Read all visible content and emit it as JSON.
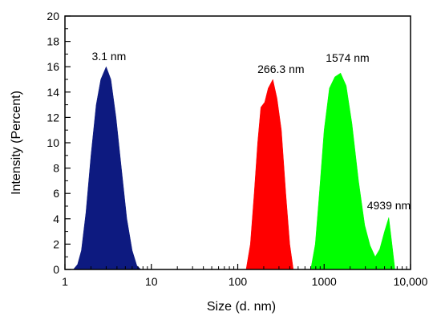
{
  "chart_data": {
    "type": "area",
    "xscale": "log",
    "xlim": [
      1,
      10000
    ],
    "ylim": [
      0,
      20
    ],
    "xlabel": "Size (d. nm)",
    "ylabel": "Intensity (Percent)",
    "xticks": [
      1,
      10,
      100,
      1000,
      10000
    ],
    "xtick_labels": [
      "1",
      "10",
      "100",
      "1000",
      "10,000"
    ],
    "yticks": [
      0,
      2,
      4,
      6,
      8,
      10,
      12,
      14,
      16,
      18,
      20
    ],
    "ytick_labels": [
      "0",
      "2",
      "4",
      "6",
      "8",
      "10",
      "12",
      "14",
      "16",
      "18",
      "20"
    ],
    "grid": false,
    "series": [
      {
        "color": "#0d1a80",
        "points": [
          [
            1.25,
            0
          ],
          [
            1.4,
            0.4
          ],
          [
            1.55,
            1.5
          ],
          [
            1.75,
            4.5
          ],
          [
            2.0,
            9
          ],
          [
            2.3,
            13
          ],
          [
            2.6,
            15
          ],
          [
            3.0,
            16
          ],
          [
            3.4,
            15
          ],
          [
            3.9,
            12
          ],
          [
            4.5,
            8
          ],
          [
            5.2,
            4
          ],
          [
            6.0,
            1.5
          ],
          [
            6.8,
            0.3
          ],
          [
            7.6,
            0
          ]
        ]
      },
      {
        "color": "#ff0000",
        "points": [
          [
            125,
            0
          ],
          [
            140,
            2
          ],
          [
            155,
            6
          ],
          [
            170,
            10
          ],
          [
            185,
            12.8
          ],
          [
            205,
            13.2
          ],
          [
            225,
            14.3
          ],
          [
            255,
            15.0
          ],
          [
            285,
            13.5
          ],
          [
            320,
            11
          ],
          [
            360,
            6
          ],
          [
            400,
            2
          ],
          [
            440,
            0
          ]
        ]
      },
      {
        "color": "#00ff00",
        "points": [
          [
            700,
            0
          ],
          [
            790,
            2
          ],
          [
            880,
            6
          ],
          [
            1000,
            11
          ],
          [
            1150,
            14.3
          ],
          [
            1330,
            15.2
          ],
          [
            1550,
            15.5
          ],
          [
            1800,
            14.5
          ],
          [
            2100,
            11.5
          ],
          [
            2500,
            7
          ],
          [
            2950,
            3.5
          ],
          [
            3400,
            1.9
          ],
          [
            3900,
            1.0
          ],
          [
            4400,
            1.6
          ],
          [
            5000,
            3.0
          ],
          [
            5600,
            4.1
          ],
          [
            6100,
            2.0
          ],
          [
            6600,
            0
          ]
        ]
      }
    ],
    "annotations": [
      {
        "text": "3.1 nm",
        "x": 3.1,
        "y": 16
      },
      {
        "text": "266.3 nm",
        "x": 266.3,
        "y": 15
      },
      {
        "text": "1574 nm",
        "x": 1574,
        "y": 15.5
      },
      {
        "text": "4939 nm",
        "x": 4939,
        "y": 4
      }
    ]
  }
}
